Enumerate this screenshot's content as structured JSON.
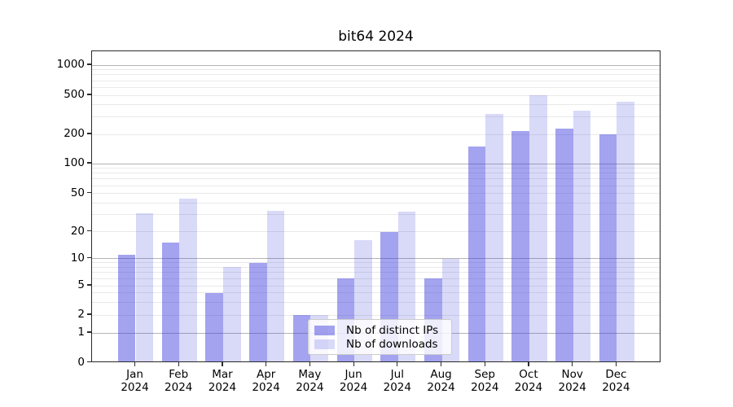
{
  "title": "bit64 2024",
  "chart_data": {
    "type": "bar",
    "title": "bit64 2024",
    "categories": [
      "Jan",
      "Feb",
      "Mar",
      "Apr",
      "May",
      "Jun",
      "Jul",
      "Aug",
      "Sep",
      "Oct",
      "Nov",
      "Dec"
    ],
    "category_year": "2024",
    "series": [
      {
        "name": "Nb of distinct IPs",
        "values": [
          11,
          15,
          4,
          9,
          2,
          6,
          20,
          6,
          150,
          215,
          230,
          200
        ]
      },
      {
        "name": "Nb of downloads",
        "values": [
          31,
          44,
          8,
          33,
          2,
          16,
          32,
          10,
          320,
          500,
          350,
          430
        ]
      }
    ],
    "yscale": "symlog",
    "yticks": [
      0,
      1,
      2,
      5,
      10,
      20,
      50,
      100,
      200,
      500,
      1000
    ],
    "ylim": [
      0,
      1500
    ],
    "grid": true,
    "legend_position": "lower center",
    "colors": {
      "distinct_ips": "rgba(60,60,220,0.47)",
      "downloads": "rgba(60,60,220,0.195)",
      "major_grid": "#b4b4b4",
      "minor_grid": "#e9e9e9"
    }
  }
}
